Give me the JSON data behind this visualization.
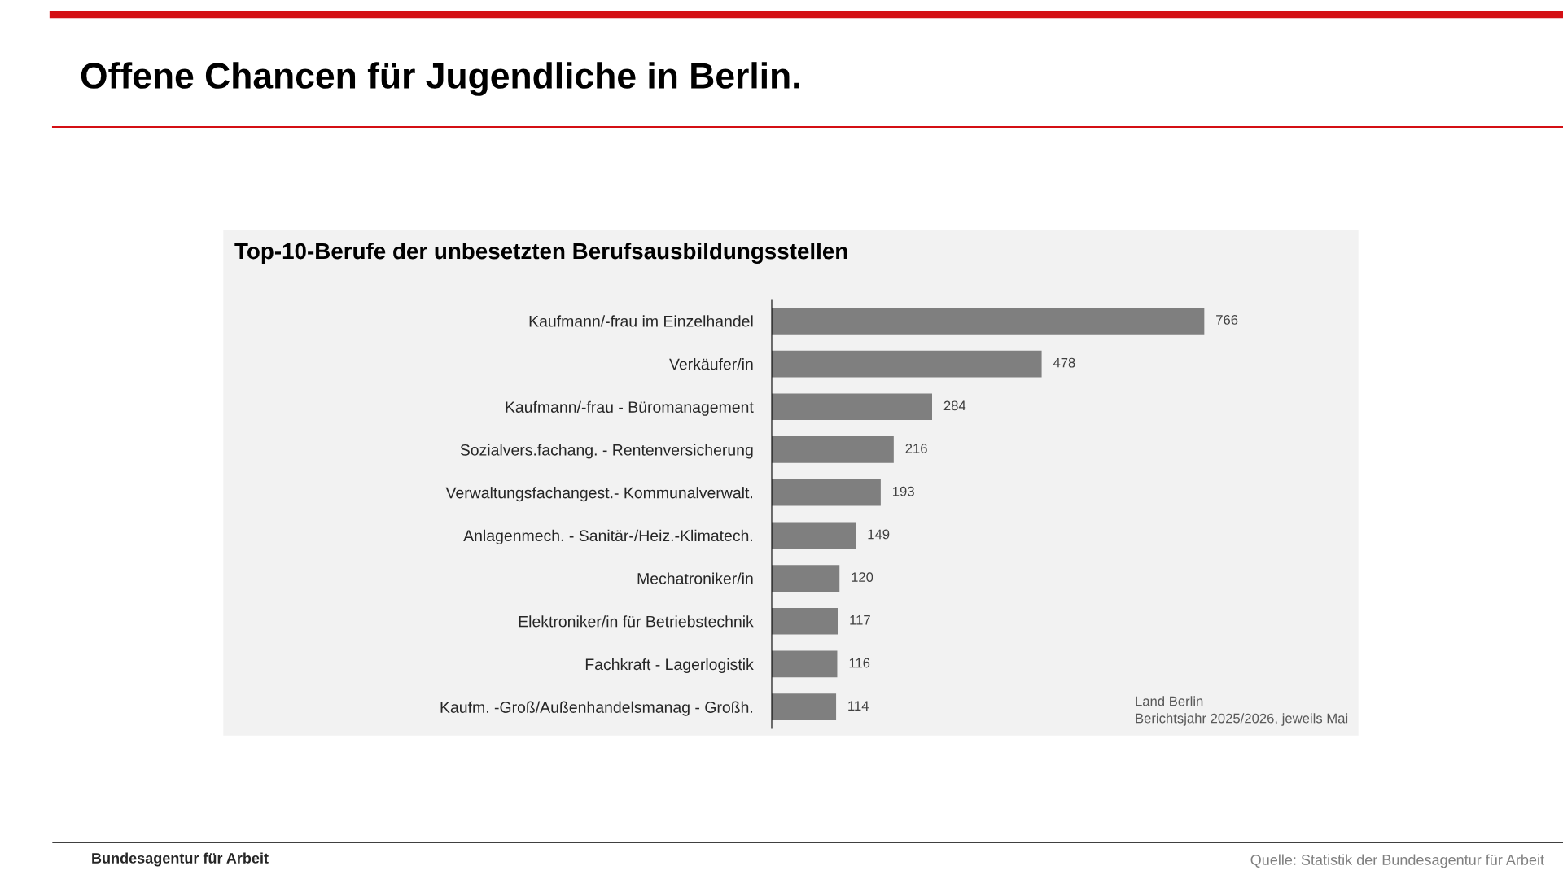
{
  "chart_data": {
    "type": "bar",
    "orientation": "horizontal",
    "title": "Offene Chancen für Jugendliche in Berlin.",
    "subtitle": "Top-10-Berufe der unbesetzten Berufsausbildungsstellen",
    "categories": [
      "Kaufmann/-frau im Einzelhandel",
      "Verkäufer/in",
      "Kaufmann/-frau - Büromanagement",
      "Sozialvers.fachang. - Rentenversicherung",
      "Verwaltungsfachangest.- Kommunalverwalt.",
      "Anlagenmech. - Sanitär-/Heiz.-Klimatech.",
      "Mechatroniker/in",
      "Elektroniker/in für Betriebstechnik",
      "Fachkraft - Lagerlogistik",
      "Kaufm. -Groß/Außenhandelsmanag - Großh."
    ],
    "values": [
      766,
      478,
      284,
      216,
      193,
      149,
      120,
      117,
      116,
      114
    ],
    "color": "#7f7f7f",
    "data_labels": true,
    "grid": false,
    "legend": false,
    "annotations": [
      "Land Berlin",
      "Berichtsjahr 2025/2026, jeweils Mai",
      "Quelle: Statistik der Bundesagentur für Arbeit",
      "Bundesagentur für Arbeit"
    ]
  }
}
